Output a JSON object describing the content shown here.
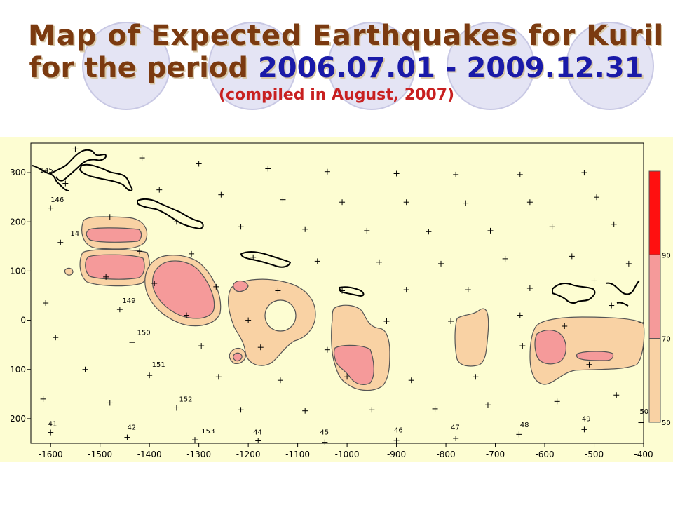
{
  "title": {
    "line1": "Map  of  Expected  Earthquakes  for  Kuril",
    "line2_prefix": "for the period ",
    "period": "2006.07.01 - 2009.12.31",
    "line3": "(compiled  in August, 2007)"
  },
  "colors": {
    "title": "#7b3a10",
    "period": "#1a1aa8",
    "compiled": "#c82020",
    "background": "#fdfdd2",
    "level_low": "#f9d2a4",
    "level_mid": "#f59a9a",
    "level_high": "#ff1010"
  },
  "x_ticks": [
    -1600,
    -1500,
    -1400,
    -1300,
    -1200,
    -1100,
    -1000,
    -900,
    -800,
    -700,
    -600,
    -500,
    -400
  ],
  "y_ticks": [
    300,
    200,
    100,
    0,
    -100,
    -200
  ],
  "x_range": [
    -1640,
    -400
  ],
  "y_range": [
    -250,
    360
  ],
  "legend": {
    "labels": [
      "90",
      "70",
      "50"
    ]
  },
  "cell_labels": [
    {
      "text": "145",
      "x": -1622,
      "y": 300
    },
    {
      "text": "146",
      "x": -1600,
      "y": 240
    },
    {
      "text": "14",
      "x": -1560,
      "y": 172
    },
    {
      "text": "149",
      "x": -1455,
      "y": 35
    },
    {
      "text": "150",
      "x": -1425,
      "y": -30
    },
    {
      "text": "151",
      "x": -1395,
      "y": -95
    },
    {
      "text": "152",
      "x": -1340,
      "y": -165
    },
    {
      "text": "153",
      "x": -1295,
      "y": -230
    },
    {
      "text": "41",
      "x": -1605,
      "y": -215
    },
    {
      "text": "42",
      "x": -1445,
      "y": -222
    },
    {
      "text": "44",
      "x": -1190,
      "y": -232
    },
    {
      "text": "45",
      "x": -1055,
      "y": -232
    },
    {
      "text": "46",
      "x": -905,
      "y": -228
    },
    {
      "text": "47",
      "x": -790,
      "y": -222
    },
    {
      "text": "48",
      "x": -650,
      "y": -217
    },
    {
      "text": "49",
      "x": -525,
      "y": -205
    },
    {
      "text": "50",
      "x": -408,
      "y": -190
    }
  ],
  "markers": [
    [
      -1550,
      348
    ],
    [
      -1415,
      330
    ],
    [
      -1300,
      318
    ],
    [
      -1160,
      308
    ],
    [
      -1040,
      302
    ],
    [
      -900,
      298
    ],
    [
      -780,
      296
    ],
    [
      -650,
      296
    ],
    [
      -520,
      300
    ],
    [
      -1570,
      278
    ],
    [
      -1380,
      265
    ],
    [
      -1255,
      255
    ],
    [
      -1130,
      245
    ],
    [
      -1010,
      240
    ],
    [
      -880,
      240
    ],
    [
      -760,
      238
    ],
    [
      -630,
      240
    ],
    [
      -495,
      250
    ],
    [
      -1480,
      210
    ],
    [
      -1345,
      200
    ],
    [
      -1215,
      190
    ],
    [
      -1085,
      185
    ],
    [
      -960,
      182
    ],
    [
      -835,
      180
    ],
    [
      -710,
      182
    ],
    [
      -585,
      190
    ],
    [
      -460,
      195
    ],
    [
      -1600,
      228
    ],
    [
      -1580,
      158
    ],
    [
      -1420,
      140
    ],
    [
      -1315,
      135
    ],
    [
      -1190,
      128
    ],
    [
      -1060,
      120
    ],
    [
      -935,
      118
    ],
    [
      -810,
      115
    ],
    [
      -680,
      125
    ],
    [
      -545,
      130
    ],
    [
      -430,
      115
    ],
    [
      -1488,
      88
    ],
    [
      -1390,
      75
    ],
    [
      -1265,
      68
    ],
    [
      -1140,
      60
    ],
    [
      -1010,
      60
    ],
    [
      -880,
      62
    ],
    [
      -755,
      62
    ],
    [
      -630,
      65
    ],
    [
      -500,
      80
    ],
    [
      -465,
      30
    ],
    [
      -1610,
      35
    ],
    [
      -1460,
      22
    ],
    [
      -1325,
      10
    ],
    [
      -1200,
      0
    ],
    [
      -920,
      -2
    ],
    [
      -790,
      -2
    ],
    [
      -650,
      10
    ],
    [
      -560,
      -12
    ],
    [
      -405,
      -5
    ],
    [
      -1590,
      -35
    ],
    [
      -1435,
      -45
    ],
    [
      -1295,
      -52
    ],
    [
      -1175,
      -55
    ],
    [
      -1040,
      -60
    ],
    [
      -645,
      -52
    ],
    [
      -510,
      -90
    ],
    [
      -1530,
      -100
    ],
    [
      -1400,
      -112
    ],
    [
      -1260,
      -115
    ],
    [
      -1135,
      -122
    ],
    [
      -1000,
      -115
    ],
    [
      -870,
      -122
    ],
    [
      -740,
      -115
    ],
    [
      -1615,
      -160
    ],
    [
      -1480,
      -168
    ],
    [
      -1345,
      -178
    ],
    [
      -1215,
      -182
    ],
    [
      -1085,
      -184
    ],
    [
      -950,
      -182
    ],
    [
      -822,
      -180
    ],
    [
      -715,
      -172
    ],
    [
      -575,
      -165
    ],
    [
      -455,
      -152
    ],
    [
      -1600,
      -228
    ],
    [
      -1445,
      -238
    ],
    [
      -1308,
      -243
    ],
    [
      -1180,
      -245
    ],
    [
      -1045,
      -248
    ],
    [
      -900,
      -244
    ],
    [
      -780,
      -240
    ],
    [
      -652,
      -232
    ],
    [
      -520,
      -222
    ],
    [
      -405,
      -208
    ]
  ]
}
